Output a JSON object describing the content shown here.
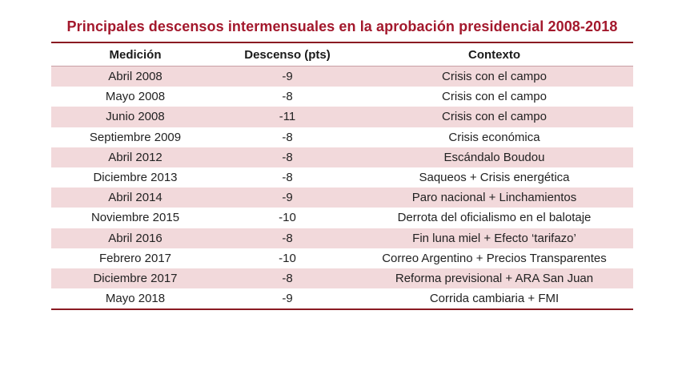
{
  "title": "Principales descensos intermensuales en la aprobación presidencial 2008-2018",
  "headers": [
    "Medición",
    "Descenso (pts)",
    "Contexto"
  ],
  "rows": [
    {
      "medicion": "Abril 2008",
      "descenso": "-9",
      "contexto": "Crisis con el campo"
    },
    {
      "medicion": "Mayo 2008",
      "descenso": "-8",
      "contexto": "Crisis con el campo"
    },
    {
      "medicion": "Junio 2008",
      "descenso": "-11",
      "contexto": "Crisis con el campo"
    },
    {
      "medicion": "Septiembre 2009",
      "descenso": "-8",
      "contexto": "Crisis económica"
    },
    {
      "medicion": "Abril 2012",
      "descenso": "-8",
      "contexto": "Escándalo Boudou"
    },
    {
      "medicion": "Diciembre 2013",
      "descenso": "-8",
      "contexto": "Saqueos + Crisis energética"
    },
    {
      "medicion": "Abril 2014",
      "descenso": "-9",
      "contexto": "Paro nacional + Linchamientos"
    },
    {
      "medicion": "Noviembre 2015",
      "descenso": "-10",
      "contexto": "Derrota del oficialismo en el balotaje"
    },
    {
      "medicion": "Abril 2016",
      "descenso": "-8",
      "contexto": "Fin luna miel + Efecto ‘tarifazo’"
    },
    {
      "medicion": "Febrero 2017",
      "descenso": "-10",
      "contexto": "Correo Argentino + Precios Transparentes"
    },
    {
      "medicion": "Diciembre 2017",
      "descenso": "-8",
      "contexto": "Reforma previsional + ARA San Juan"
    },
    {
      "medicion": "Mayo 2018",
      "descenso": "-9",
      "contexto": "Corrida cambiaria + FMI"
    }
  ],
  "colors": {
    "title": "#a3182c",
    "rule": "#8a1a22",
    "band": "#f2d9db"
  }
}
